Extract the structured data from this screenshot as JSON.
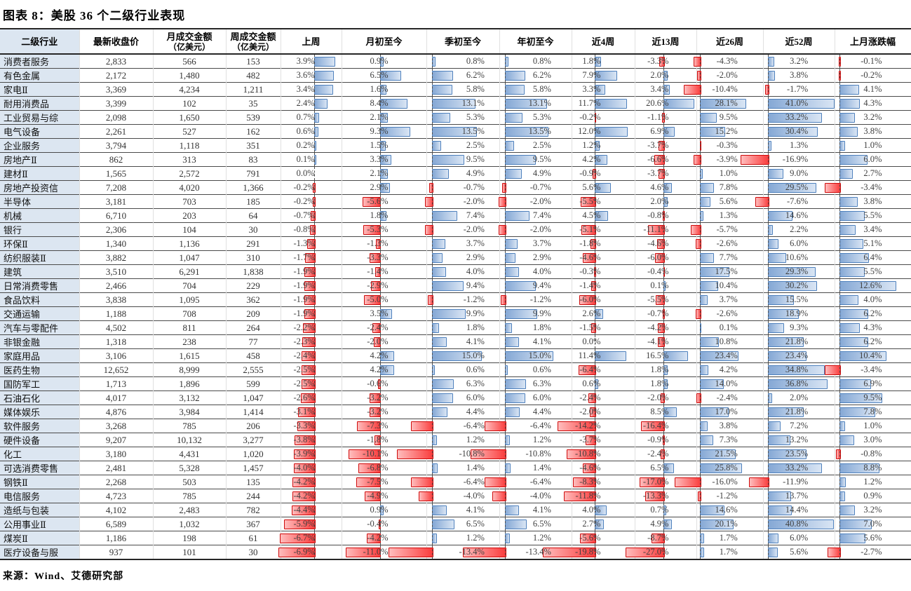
{
  "title": "图表 8：美股 36 个二级行业表现",
  "source": "来源：Wind、艾德研究部",
  "colors": {
    "first_column_bg": "#dce6f1",
    "positive_bar_fill": "#85a8d5",
    "positive_bar_border": "#4f81bd",
    "negative_bar_fill": "#fa3c3c",
    "negative_bar_border": "#cf0a0a",
    "row_line": "#4a4a4a"
  },
  "table": {
    "columns": [
      {
        "label": "二级行业"
      },
      {
        "label": "最新收盘价"
      },
      {
        "label": "月成交金额",
        "sub": "（亿美元）"
      },
      {
        "label": "周成交金额",
        "sub": "（亿美元）"
      },
      {
        "label": "上周"
      },
      {
        "label": "月初至今"
      },
      {
        "label": "季初至今"
      },
      {
        "label": "年初至今"
      },
      {
        "label": "近4周"
      },
      {
        "label": "近13周"
      },
      {
        "label": "近26周"
      },
      {
        "label": "近52周"
      },
      {
        "label": "上月涨跌幅"
      }
    ],
    "rows": [
      {
        "industry": "消费者服务",
        "close": "2,833",
        "month_vol": "566",
        "week_vol": "153",
        "pct": [
          "3.9%",
          "0.9%",
          "0.8%",
          "0.8%",
          "1.8%",
          "-3.3%",
          "-4.3%",
          "3.2%",
          "-0.1%"
        ]
      },
      {
        "industry": "有色金属",
        "close": "2,172",
        "month_vol": "1,480",
        "week_vol": "482",
        "pct": [
          "3.6%",
          "6.5%",
          "6.2%",
          "6.2%",
          "7.9%",
          "2.0%",
          "-2.0%",
          "3.8%",
          "-0.2%"
        ]
      },
      {
        "industry": "家电Ⅱ",
        "close": "3,369",
        "month_vol": "4,234",
        "week_vol": "1,211",
        "pct": [
          "3.4%",
          "1.6%",
          "5.8%",
          "5.8%",
          "3.3%",
          "3.4%",
          "-10.4%",
          "-1.7%",
          "4.1%"
        ]
      },
      {
        "industry": "耐用消费品",
        "close": "3,399",
        "month_vol": "102",
        "week_vol": "35",
        "pct": [
          "2.4%",
          "8.4%",
          "13.1%",
          "13.1%",
          "11.7%",
          "20.6%",
          "28.1%",
          "41.0%",
          "4.3%"
        ]
      },
      {
        "industry": "工业贸易与综",
        "close": "2,098",
        "month_vol": "1,650",
        "week_vol": "539",
        "pct": [
          "0.7%",
          "2.1%",
          "5.3%",
          "5.3%",
          "-0.2%",
          "-1.1%",
          "9.5%",
          "33.2%",
          "3.2%"
        ]
      },
      {
        "industry": "电气设备",
        "close": "2,261",
        "month_vol": "527",
        "week_vol": "162",
        "pct": [
          "0.6%",
          "9.3%",
          "13.5%",
          "13.5%",
          "12.0%",
          "6.9%",
          "15.2%",
          "30.4%",
          "3.8%"
        ]
      },
      {
        "industry": "企业服务",
        "close": "3,794",
        "month_vol": "1,118",
        "week_vol": "351",
        "pct": [
          "0.2%",
          "1.5%",
          "2.5%",
          "2.5%",
          "1.2%",
          "-3.7%",
          "-0.3%",
          "1.3%",
          "1.0%"
        ]
      },
      {
        "industry": "房地产Ⅱ",
        "close": "862",
        "month_vol": "313",
        "week_vol": "83",
        "pct": [
          "0.1%",
          "3.3%",
          "9.5%",
          "9.5%",
          "4.2%",
          "-6.6%",
          "-3.9%",
          "-16.9%",
          "6.0%"
        ]
      },
      {
        "industry": "建材Ⅱ",
        "close": "1,565",
        "month_vol": "2,572",
        "week_vol": "791",
        "pct": [
          "0.0%",
          "2.1%",
          "4.9%",
          "4.9%",
          "-0.9%",
          "-3.7%",
          "1.0%",
          "9.0%",
          "2.7%"
        ]
      },
      {
        "industry": "房地产投资信",
        "close": "7,208",
        "month_vol": "4,020",
        "week_vol": "1,366",
        "pct": [
          "-0.2%",
          "2.9%",
          "-0.7%",
          "-0.7%",
          "5.6%",
          "4.6%",
          "7.8%",
          "29.5%",
          "-3.4%"
        ]
      },
      {
        "industry": "半导体",
        "close": "3,181",
        "month_vol": "703",
        "week_vol": "185",
        "pct": [
          "-0.2%",
          "-5.6%",
          "-2.0%",
          "-2.0%",
          "-5.5%",
          "2.0%",
          "5.6%",
          "-7.6%",
          "3.8%"
        ]
      },
      {
        "industry": "机械",
        "close": "6,710",
        "month_vol": "203",
        "week_vol": "64",
        "pct": [
          "-0.7%",
          "1.8%",
          "7.4%",
          "7.4%",
          "4.5%",
          "-0.8%",
          "1.3%",
          "14.6%",
          "5.5%"
        ]
      },
      {
        "industry": "银行",
        "close": "2,306",
        "month_vol": "104",
        "week_vol": "30",
        "pct": [
          "-0.8%",
          "-5.3%",
          "-2.0%",
          "-2.0%",
          "-5.1%",
          "-11.1%",
          "-5.7%",
          "2.2%",
          "3.4%"
        ]
      },
      {
        "industry": "环保Ⅱ",
        "close": "1,340",
        "month_vol": "1,136",
        "week_vol": "291",
        "pct": [
          "-1.3%",
          "-1.3%",
          "3.7%",
          "3.7%",
          "-1.8%",
          "-4.6%",
          "-2.6%",
          "6.0%",
          "5.1%"
        ]
      },
      {
        "industry": "纺织服装Ⅱ",
        "close": "3,882",
        "month_vol": "1,047",
        "week_vol": "310",
        "pct": [
          "-1.7%",
          "-3.3%",
          "2.9%",
          "2.9%",
          "-4.6%",
          "-6.0%",
          "7.7%",
          "10.6%",
          "6.4%"
        ]
      },
      {
        "industry": "建筑",
        "close": "3,510",
        "month_vol": "6,291",
        "week_vol": "1,838",
        "pct": [
          "-1.9%",
          "-1.4%",
          "4.0%",
          "4.0%",
          "-0.3%",
          "-0.4%",
          "17.5%",
          "29.3%",
          "5.5%"
        ]
      },
      {
        "industry": "日常消费零售",
        "close": "2,466",
        "month_vol": "704",
        "week_vol": "229",
        "pct": [
          "-1.9%",
          "-2.9%",
          "9.4%",
          "9.4%",
          "-1.4%",
          "0.1%",
          "10.4%",
          "30.2%",
          "12.6%"
        ]
      },
      {
        "industry": "食品饮料",
        "close": "3,838",
        "month_vol": "1,095",
        "week_vol": "362",
        "pct": [
          "-1.9%",
          "-5.0%",
          "-1.2%",
          "-1.2%",
          "-6.0%",
          "-5.5%",
          "3.7%",
          "15.5%",
          "4.0%"
        ]
      },
      {
        "industry": "交通运输",
        "close": "1,188",
        "month_vol": "708",
        "week_vol": "209",
        "pct": [
          "-1.9%",
          "3.5%",
          "9.9%",
          "9.9%",
          "2.6%",
          "-0.7%",
          "-2.6%",
          "18.9%",
          "6.2%"
        ]
      },
      {
        "industry": "汽车与零配件",
        "close": "4,502",
        "month_vol": "811",
        "week_vol": "264",
        "pct": [
          "-2.2%",
          "-2.4%",
          "1.8%",
          "1.8%",
          "-1.5%",
          "-4.2%",
          "0.1%",
          "9.3%",
          "4.3%"
        ]
      },
      {
        "industry": "非银金融",
        "close": "1,318",
        "month_vol": "238",
        "week_vol": "77",
        "pct": [
          "-2.3%",
          "-2.0%",
          "4.1%",
          "4.1%",
          "0.0%",
          "-4.1%",
          "10.8%",
          "21.8%",
          "6.2%"
        ]
      },
      {
        "industry": "家庭用品",
        "close": "3,106",
        "month_vol": "1,615",
        "week_vol": "458",
        "pct": [
          "-2.4%",
          "4.2%",
          "15.0%",
          "15.0%",
          "11.4%",
          "16.5%",
          "23.4%",
          "23.4%",
          "10.4%"
        ]
      },
      {
        "industry": "医药生物",
        "close": "12,652",
        "month_vol": "8,999",
        "week_vol": "2,555",
        "pct": [
          "-2.5%",
          "4.2%",
          "0.6%",
          "0.6%",
          "-6.4%",
          "1.8%",
          "4.2%",
          "34.8%",
          "-3.4%"
        ]
      },
      {
        "industry": "国防军工",
        "close": "1,713",
        "month_vol": "1,896",
        "week_vol": "599",
        "pct": [
          "-2.5%",
          "-0.6%",
          "6.3%",
          "6.3%",
          "0.6%",
          "1.8%",
          "14.0%",
          "36.8%",
          "6.9%"
        ]
      },
      {
        "industry": "石油石化",
        "close": "4,017",
        "month_vol": "3,132",
        "week_vol": "1,047",
        "pct": [
          "-2.6%",
          "-3.2%",
          "6.0%",
          "6.0%",
          "-2.4%",
          "-2.0%",
          "-2.4%",
          "2.0%",
          "9.5%"
        ]
      },
      {
        "industry": "媒体娱乐",
        "close": "4,876",
        "month_vol": "3,984",
        "week_vol": "1,414",
        "pct": [
          "-3.1%",
          "-3.2%",
          "4.4%",
          "4.4%",
          "-2.0%",
          "8.5%",
          "17.0%",
          "21.8%",
          "7.8%"
        ]
      },
      {
        "industry": "软件服务",
        "close": "3,268",
        "month_vol": "785",
        "week_vol": "206",
        "pct": [
          "-3.3%",
          "-7.3%",
          "-6.4%",
          "-6.4%",
          "-14.2%",
          "-16.4%",
          "3.8%",
          "7.2%",
          "1.0%"
        ]
      },
      {
        "industry": "硬件设备",
        "close": "9,207",
        "month_vol": "10,132",
        "week_vol": "3,277",
        "pct": [
          "-3.8%",
          "-1.8%",
          "1.2%",
          "1.2%",
          "-3.7%",
          "-0.9%",
          "7.3%",
          "13.2%",
          "3.0%"
        ]
      },
      {
        "industry": "化工",
        "close": "3,180",
        "month_vol": "4,431",
        "week_vol": "1,020",
        "pct": [
          "-3.9%",
          "-10.1%",
          "-10.8%",
          "-10.8%",
          "-10.8%",
          "-2.4%",
          "21.5%",
          "23.5%",
          "-0.8%"
        ]
      },
      {
        "industry": "可选消费零售",
        "close": "2,481",
        "month_vol": "5,328",
        "week_vol": "1,457",
        "pct": [
          "-4.0%",
          "-6.8%",
          "1.4%",
          "1.4%",
          "-4.6%",
          "6.5%",
          "25.8%",
          "33.2%",
          "8.8%"
        ]
      },
      {
        "industry": "钢铁Ⅱ",
        "close": "2,268",
        "month_vol": "503",
        "week_vol": "135",
        "pct": [
          "-4.2%",
          "-7.5%",
          "-6.4%",
          "-6.4%",
          "-8.3%",
          "-17.0%",
          "-16.0%",
          "-11.9%",
          "1.2%"
        ]
      },
      {
        "industry": "电信服务",
        "close": "4,723",
        "month_vol": "785",
        "week_vol": "244",
        "pct": [
          "-4.2%",
          "-4.9%",
          "-4.0%",
          "-4.0%",
          "-11.8%",
          "-13.3%",
          "-1.2%",
          "13.7%",
          "0.9%"
        ]
      },
      {
        "industry": "造纸与包装",
        "close": "4,102",
        "month_vol": "2,483",
        "week_vol": "782",
        "pct": [
          "-4.4%",
          "0.9%",
          "4.1%",
          "4.1%",
          "4.0%",
          "0.7%",
          "14.6%",
          "14.4%",
          "3.2%"
        ]
      },
      {
        "industry": "公用事业Ⅱ",
        "close": "6,589",
        "month_vol": "1,032",
        "week_vol": "367",
        "pct": [
          "-5.9%",
          "-0.4%",
          "6.5%",
          "6.5%",
          "2.7%",
          "4.9%",
          "20.1%",
          "40.8%",
          "7.0%"
        ]
      },
      {
        "industry": "煤炭Ⅱ",
        "close": "1,186",
        "month_vol": "198",
        "week_vol": "61",
        "pct": [
          "-6.7%",
          "-4.2%",
          "1.2%",
          "1.2%",
          "-5.6%",
          "-8.7%",
          "1.7%",
          "6.0%",
          "5.6%"
        ]
      },
      {
        "industry": "医疗设备与服",
        "close": "937",
        "month_vol": "101",
        "week_vol": "30",
        "pct": [
          "-6.9%",
          "-11.0%",
          "-13.4%",
          "-13.4%",
          "-19.8%",
          "-27.0%",
          "1.7%",
          "5.6%",
          "-2.7%"
        ]
      }
    ]
  }
}
